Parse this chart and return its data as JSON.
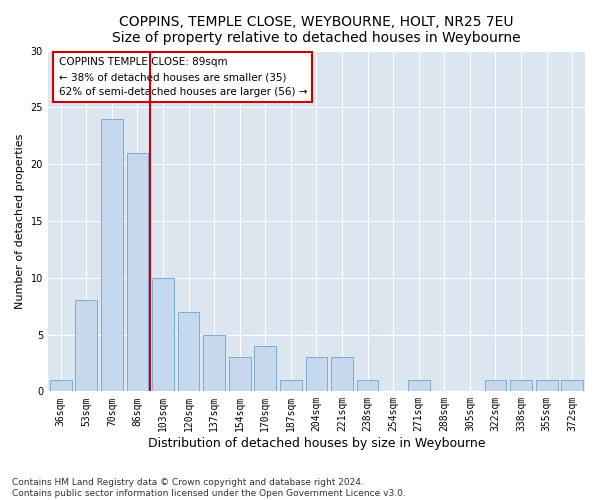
{
  "title": "COPPINS, TEMPLE CLOSE, WEYBOURNE, HOLT, NR25 7EU",
  "subtitle": "Size of property relative to detached houses in Weybourne",
  "xlabel": "Distribution of detached houses by size in Weybourne",
  "ylabel": "Number of detached properties",
  "categories": [
    "36sqm",
    "53sqm",
    "70sqm",
    "86sqm",
    "103sqm",
    "120sqm",
    "137sqm",
    "154sqm",
    "170sqm",
    "187sqm",
    "204sqm",
    "221sqm",
    "238sqm",
    "254sqm",
    "271sqm",
    "288sqm",
    "305sqm",
    "322sqm",
    "338sqm",
    "355sqm",
    "372sqm"
  ],
  "values": [
    1,
    8,
    24,
    21,
    10,
    7,
    5,
    3,
    4,
    1,
    3,
    3,
    1,
    0,
    1,
    0,
    0,
    1,
    1,
    1,
    1
  ],
  "bar_color": "#c5d8ed",
  "bar_edge_color": "#7aadd4",
  "vline_x": 3.5,
  "vline_color": "#cc0000",
  "annotation_text": "COPPINS TEMPLE CLOSE: 89sqm\n← 38% of detached houses are smaller (35)\n62% of semi-detached houses are larger (56) →",
  "annotation_box_color": "#ffffff",
  "annotation_box_edge": "#cc0000",
  "ylim": [
    0,
    30
  ],
  "yticks": [
    0,
    5,
    10,
    15,
    20,
    25,
    30
  ],
  "background_color": "#dce6f0",
  "footer": "Contains HM Land Registry data © Crown copyright and database right 2024.\nContains public sector information licensed under the Open Government Licence v3.0.",
  "title_fontsize": 10,
  "subtitle_fontsize": 9,
  "xlabel_fontsize": 9,
  "ylabel_fontsize": 8,
  "tick_fontsize": 7,
  "annotation_fontsize": 7.5,
  "footer_fontsize": 6.5
}
